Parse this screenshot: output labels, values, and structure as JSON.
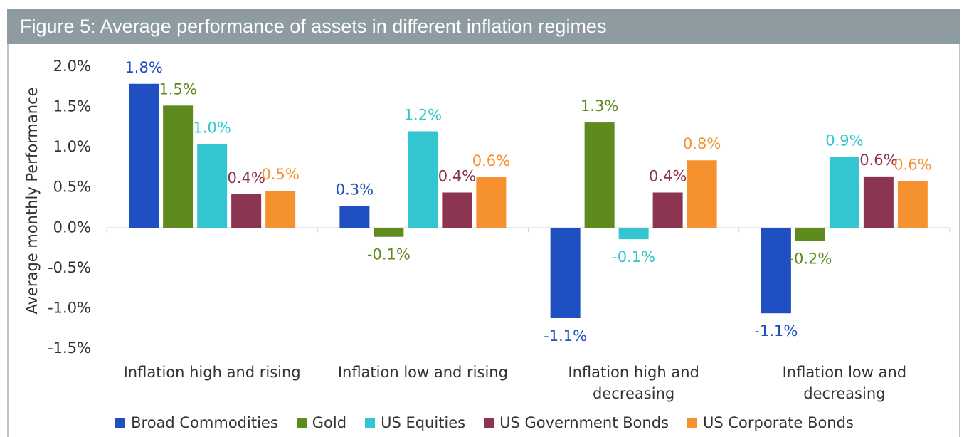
{
  "chart_data": {
    "type": "bar",
    "title": "Figure 5: Average performance of assets in different inflation regimes",
    "ylabel": "Average monthly Performance",
    "categories": [
      "Inflation high and rising",
      "Inflation low and rising",
      "Inflation high and decreasing",
      "Inflation low and decreasing"
    ],
    "series": [
      {
        "name": "Broad Commodities",
        "color": "#1f4fc1",
        "values": [
          1.79,
          0.27,
          -1.12,
          -1.06
        ],
        "value_labels": [
          "1.8%",
          "0.3%",
          "-1.1%",
          "-1.1%"
        ]
      },
      {
        "name": "Gold",
        "color": "#5e8a1e",
        "values": [
          1.52,
          -0.11,
          1.31,
          -0.16
        ],
        "value_labels": [
          "1.5%",
          "-0.1%",
          "1.3%",
          "-0.2%"
        ]
      },
      {
        "name": "US Equities",
        "color": "#33c6d0",
        "values": [
          1.04,
          1.2,
          -0.14,
          0.88
        ],
        "value_labels": [
          "1.0%",
          "1.2%",
          "-0.1%",
          "0.9%"
        ]
      },
      {
        "name": "US Government Bonds",
        "color": "#8b3550",
        "values": [
          0.42,
          0.44,
          0.44,
          0.64
        ],
        "value_labels": [
          "0.4%",
          "0.4%",
          "0.4%",
          "0.6%"
        ]
      },
      {
        "name": "US Corporate Bonds",
        "color": "#f5922f",
        "values": [
          0.46,
          0.63,
          0.84,
          0.58
        ],
        "value_labels": [
          "0.5%",
          "0.6%",
          "0.8%",
          "0.6%"
        ]
      }
    ],
    "ylim": [
      -1.5,
      2.0
    ],
    "yticks": [
      {
        "value": 2.0,
        "label": "2.0%"
      },
      {
        "value": 1.5,
        "label": "1.5%"
      },
      {
        "value": 1.0,
        "label": "1.0%"
      },
      {
        "value": 0.5,
        "label": "0.5%"
      },
      {
        "value": 0.0,
        "label": "0.0%"
      },
      {
        "value": -0.5,
        "label": "-0.5%"
      },
      {
        "value": -1.0,
        "label": "-1.0%"
      },
      {
        "value": -1.5,
        "label": "-1.5%"
      }
    ],
    "grid": false,
    "legend": "bottom"
  }
}
